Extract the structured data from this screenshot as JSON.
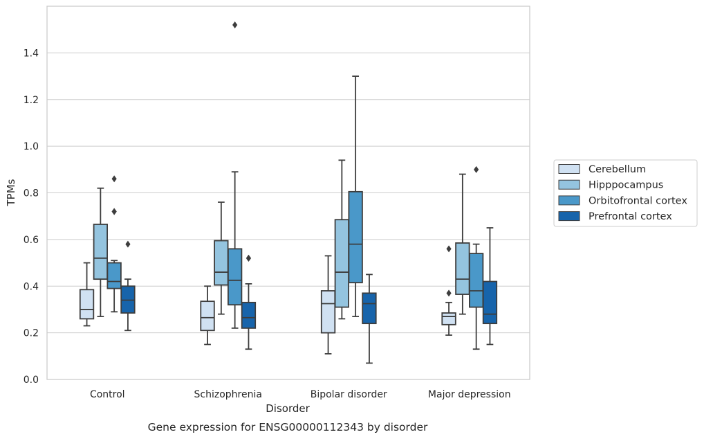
{
  "chart_data": {
    "type": "boxplot",
    "title": "",
    "caption": "Gene expression for ENSG00000112343 by disorder",
    "xlabel": "Disorder",
    "ylabel": "TPMs",
    "ylim": [
      0,
      1.6
    ],
    "yticks": [
      "0.0",
      "0.2",
      "0.4",
      "0.6",
      "0.8",
      "1.0",
      "1.2",
      "1.4"
    ],
    "grid": "horizontal",
    "legend_position": "right",
    "categories": [
      "Control",
      "Schizophrenia",
      "Bipolar disorder",
      "Major depression"
    ],
    "series": [
      {
        "name": "Cerebellum",
        "color": "#d0e1f2",
        "boxes": [
          {
            "whislo": 0.23,
            "q1": 0.26,
            "med": 0.3,
            "q3": 0.385,
            "whishi": 0.5,
            "fliers": []
          },
          {
            "whislo": 0.15,
            "q1": 0.21,
            "med": 0.265,
            "q3": 0.335,
            "whishi": 0.4,
            "fliers": []
          },
          {
            "whislo": 0.11,
            "q1": 0.2,
            "med": 0.325,
            "q3": 0.38,
            "whishi": 0.53,
            "fliers": []
          },
          {
            "whislo": 0.19,
            "q1": 0.235,
            "med": 0.27,
            "q3": 0.285,
            "whishi": 0.33,
            "fliers": [
              0.37,
              0.56
            ]
          }
        ]
      },
      {
        "name": "Hipppocampus",
        "color": "#94c4df",
        "boxes": [
          {
            "whislo": 0.27,
            "q1": 0.43,
            "med": 0.52,
            "q3": 0.665,
            "whishi": 0.82,
            "fliers": []
          },
          {
            "whislo": 0.28,
            "q1": 0.405,
            "med": 0.46,
            "q3": 0.595,
            "whishi": 0.76,
            "fliers": []
          },
          {
            "whislo": 0.26,
            "q1": 0.31,
            "med": 0.46,
            "q3": 0.685,
            "whishi": 0.94,
            "fliers": []
          },
          {
            "whislo": 0.28,
            "q1": 0.365,
            "med": 0.43,
            "q3": 0.585,
            "whishi": 0.88,
            "fliers": []
          }
        ]
      },
      {
        "name": "Orbitofrontal cortex",
        "color": "#4a98c9",
        "boxes": [
          {
            "whislo": 0.29,
            "q1": 0.39,
            "med": 0.42,
            "q3": 0.5,
            "whishi": 0.51,
            "fliers": [
              0.72,
              0.72,
              0.86
            ]
          },
          {
            "whislo": 0.22,
            "q1": 0.32,
            "med": 0.425,
            "q3": 0.56,
            "whishi": 0.89,
            "fliers": [
              1.52
            ]
          },
          {
            "whislo": 0.27,
            "q1": 0.415,
            "med": 0.58,
            "q3": 0.805,
            "whishi": 1.3,
            "fliers": []
          },
          {
            "whislo": 0.13,
            "q1": 0.31,
            "med": 0.38,
            "q3": 0.54,
            "whishi": 0.58,
            "fliers": [
              0.9
            ]
          }
        ]
      },
      {
        "name": "Prefrontal cortex",
        "color": "#1764ab",
        "boxes": [
          {
            "whislo": 0.21,
            "q1": 0.285,
            "med": 0.34,
            "q3": 0.4,
            "whishi": 0.43,
            "fliers": [
              0.58
            ]
          },
          {
            "whislo": 0.13,
            "q1": 0.22,
            "med": 0.265,
            "q3": 0.33,
            "whishi": 0.41,
            "fliers": [
              0.52,
              0.52
            ]
          },
          {
            "whislo": 0.07,
            "q1": 0.24,
            "med": 0.325,
            "q3": 0.37,
            "whishi": 0.45,
            "fliers": []
          },
          {
            "whislo": 0.15,
            "q1": 0.24,
            "med": 0.28,
            "q3": 0.42,
            "whishi": 0.65,
            "fliers": []
          }
        ]
      }
    ]
  }
}
